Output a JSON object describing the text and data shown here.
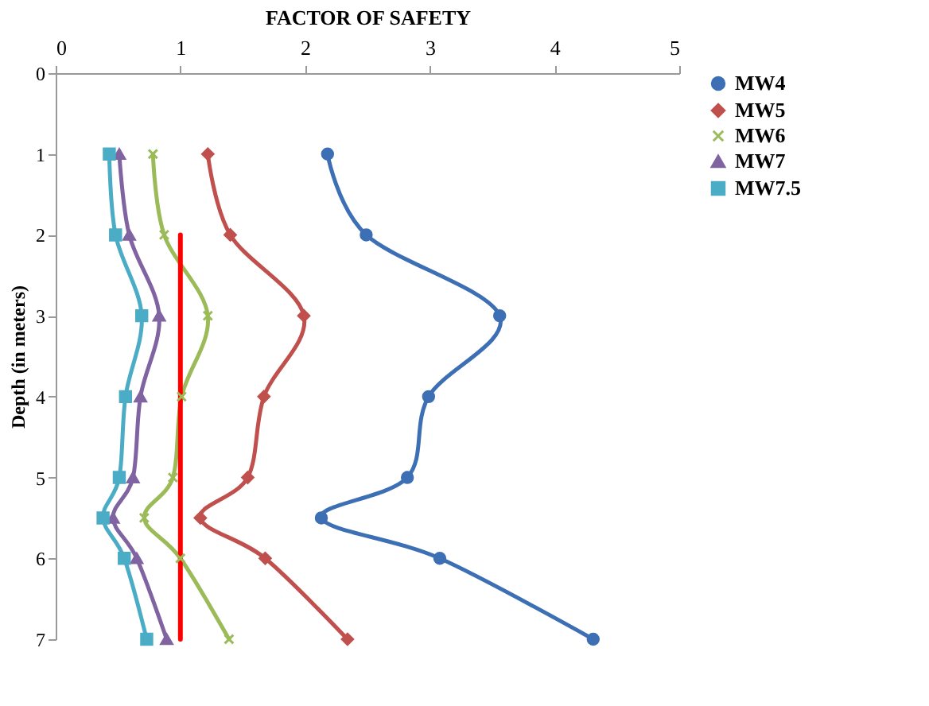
{
  "chart_data": {
    "type": "line",
    "xlabel": "FACTOR OF SAFETY",
    "ylabel": "Depth (in meters)",
    "xlim": [
      0,
      5
    ],
    "xticks": [
      0,
      1,
      2,
      3,
      4,
      5
    ],
    "ylim": [
      7,
      0
    ],
    "yticks": [
      0,
      1,
      2,
      3,
      4,
      5,
      6,
      7
    ],
    "grid": false,
    "legend": "right",
    "series": [
      {
        "name": "MW4",
        "color": "#3d6fb5",
        "marker": "circle",
        "x": [
          2.18,
          2.49,
          3.56,
          2.99,
          2.82,
          2.13,
          3.08,
          4.31
        ],
        "values": [
          1,
          2,
          3,
          4,
          5,
          5.5,
          6,
          7
        ]
      },
      {
        "name": "MW5",
        "color": "#c0504d",
        "marker": "diamond",
        "x": [
          1.22,
          1.4,
          1.99,
          1.67,
          1.54,
          1.16,
          1.68,
          2.34
        ],
        "values": [
          1,
          2,
          3,
          4,
          5,
          5.5,
          6,
          7
        ]
      },
      {
        "name": "MW6",
        "color": "#9bbb59",
        "marker": "cross",
        "x": [
          0.78,
          0.87,
          1.22,
          1.01,
          0.94,
          0.71,
          1.0,
          1.39
        ],
        "values": [
          1,
          2,
          3,
          4,
          5,
          5.5,
          6,
          7
        ]
      },
      {
        "name": "MW7",
        "color": "#8064a2",
        "marker": "triangle",
        "x": [
          0.51,
          0.59,
          0.83,
          0.68,
          0.62,
          0.46,
          0.65,
          0.89
        ],
        "values": [
          1,
          2,
          3,
          4,
          5,
          5.5,
          6,
          7
        ]
      },
      {
        "name": "MW7.5",
        "color": "#4bacc6",
        "marker": "square",
        "x": [
          0.43,
          0.48,
          0.69,
          0.56,
          0.51,
          0.38,
          0.55,
          0.73
        ],
        "values": [
          1,
          2,
          3,
          4,
          5,
          5.5,
          6,
          7
        ]
      },
      {
        "color": "#ff0000",
        "marker": "none",
        "x": [
          1,
          1
        ],
        "values": [
          2,
          7
        ]
      }
    ]
  }
}
